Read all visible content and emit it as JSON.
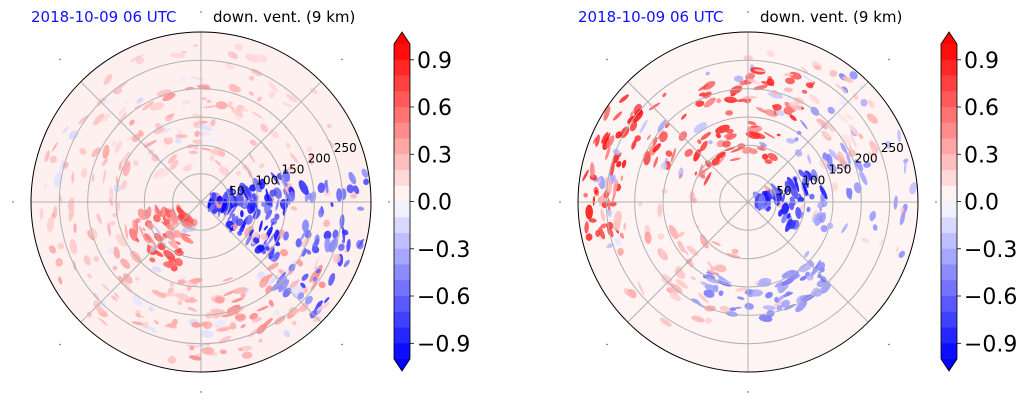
{
  "chart_data": [
    {
      "type": "heatmap",
      "projection": "polar",
      "title_time": "2018-10-09 06 UTC",
      "title_name": "down. vent. (9 km)",
      "radial_ticks": [
        "50",
        "100",
        "150",
        "200",
        "250"
      ],
      "radial_max": 300,
      "n_spokes": 8,
      "colorbar": {
        "cmap": "bwr",
        "vmin": -1.0,
        "vmax": 1.0,
        "extend": "both",
        "ticks": [
          "0.9",
          "0.6",
          "0.3",
          "0.0",
          "−0.3",
          "−0.6",
          "−0.9"
        ],
        "tick_values": [
          0.9,
          0.6,
          0.3,
          0.0,
          -0.3,
          -0.6,
          -0.9
        ]
      }
    },
    {
      "type": "heatmap",
      "projection": "polar",
      "title_time": "2018-10-09 06 UTC",
      "title_name": "down. vent. (9 km)",
      "radial_ticks": [
        "50",
        "100",
        "150",
        "200",
        "250"
      ],
      "radial_max": 300,
      "n_spokes": 8,
      "colorbar": {
        "cmap": "bwr",
        "vmin": -1.0,
        "vmax": 1.0,
        "extend": "both",
        "ticks": [
          "0.9",
          "0.6",
          "0.3",
          "0.0",
          "−0.3",
          "−0.6",
          "−0.9"
        ],
        "tick_values": [
          0.9,
          0.6,
          0.3,
          0.0,
          -0.3,
          -0.6,
          -0.9
        ]
      }
    }
  ]
}
